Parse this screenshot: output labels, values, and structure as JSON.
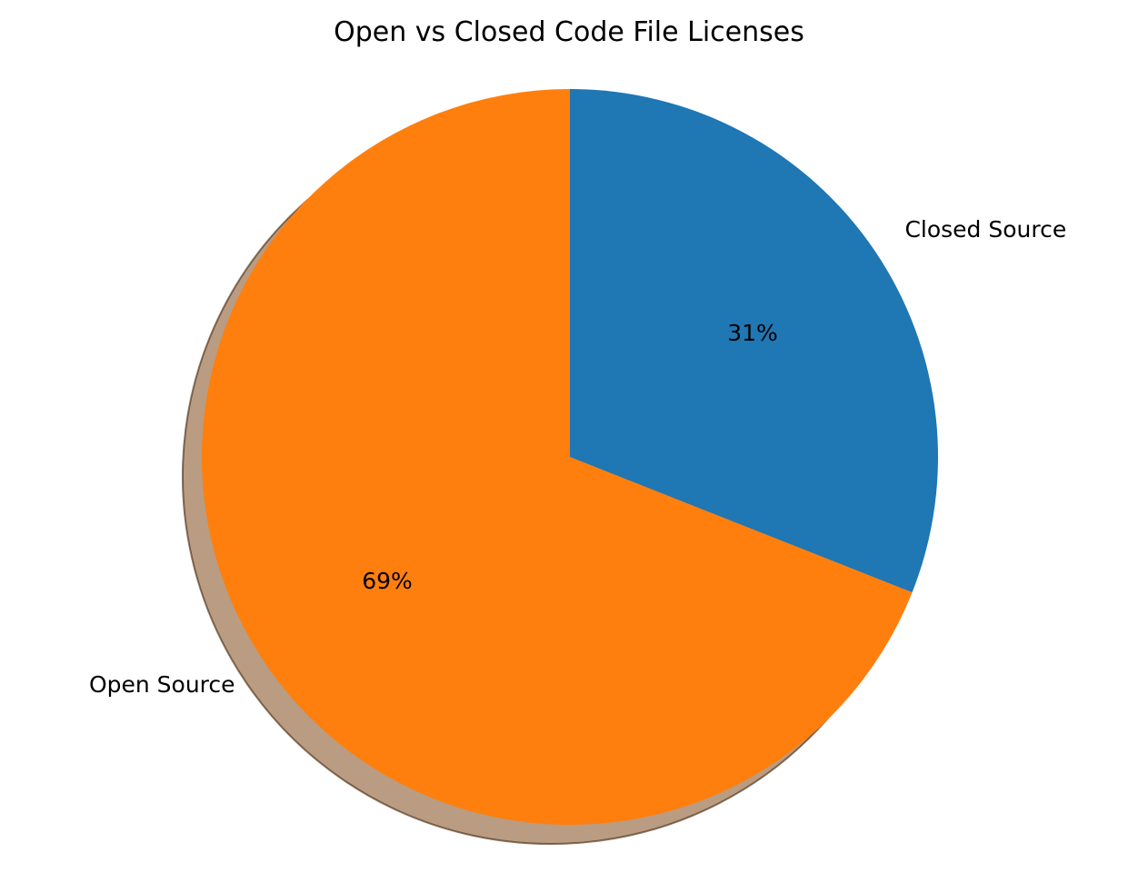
{
  "chart_data": {
    "type": "pie",
    "title": "Open vs Closed Code File Licenses",
    "start_angle_deg": 90,
    "direction": "clockwise",
    "shadow": true,
    "slices": [
      {
        "label": "Closed Source",
        "value": 31,
        "pct_label": "31%",
        "color": "#1f77b4"
      },
      {
        "label": "Open Source",
        "value": 69,
        "pct_label": "69%",
        "color": "#ff7f0e"
      }
    ]
  }
}
